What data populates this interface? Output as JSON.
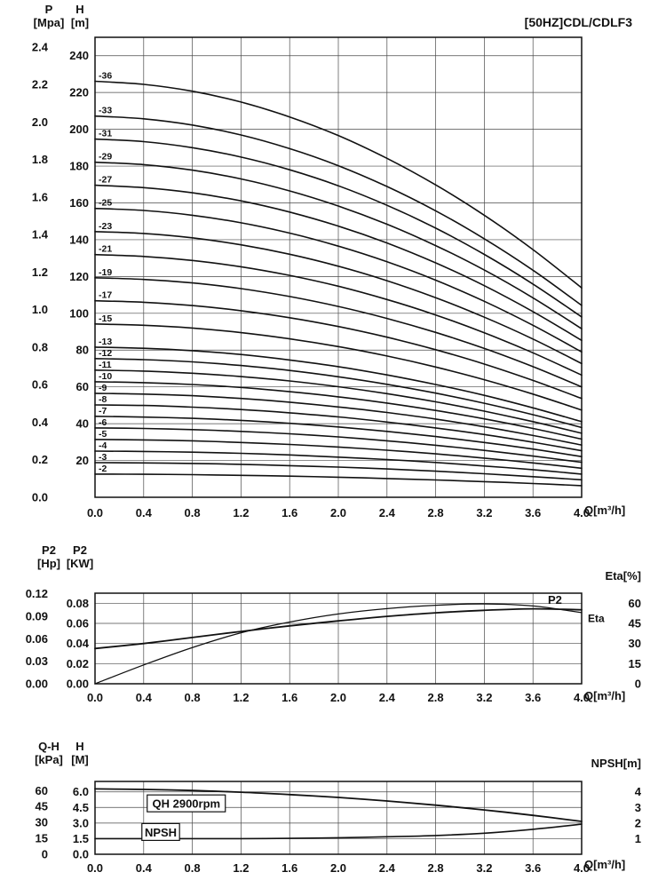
{
  "window": {
    "title": "[50HZ]CDL/CDLF3"
  },
  "colors": {
    "ink": "#111111",
    "grid": "#4a4a4a",
    "background": "#ffffff"
  },
  "x_unit_label": "Q[m³/h]",
  "chart_data": [
    {
      "id": "main",
      "type": "line",
      "title": "[50HZ]CDL/CDLF3",
      "x": {
        "min": 0,
        "max": 4,
        "values": [
          0,
          0.4,
          0.8,
          1.2,
          1.6,
          2,
          2.4,
          2.8,
          3.2,
          3.6,
          4
        ],
        "ticks": [
          "0.0",
          "0.4",
          "0.8",
          "1.2",
          "1.6",
          "2.0",
          "2.4",
          "2.8",
          "3.2",
          "3.6",
          "4.0"
        ],
        "unit": "Q[m³/h]"
      },
      "y": {
        "name": "Head H [m]",
        "min": 0,
        "max": 250,
        "grid": [
          20,
          40,
          60,
          80,
          100,
          120,
          140,
          160,
          180,
          200,
          220,
          240
        ]
      },
      "axes": [
        {
          "side": "left-outer",
          "title": [
            "P",
            "[Mpa]"
          ],
          "to_primary": 102,
          "ticks": [
            "0.0",
            "0.2",
            "0.4",
            "0.6",
            "0.8",
            "1.0",
            "1.2",
            "1.4",
            "1.6",
            "1.8",
            "2.0",
            "2.2",
            "2.4"
          ]
        },
        {
          "side": "left-inner",
          "title": [
            "H",
            "[m]"
          ],
          "to_primary": 1,
          "ticks": [
            "20",
            "40",
            "60",
            "80",
            "100",
            "120",
            "140",
            "160",
            "180",
            "200",
            "220",
            "240"
          ]
        }
      ],
      "series": [
        {
          "name": "-36",
          "label_at_start": true,
          "y": [
            226.1,
            224.4,
            220.7,
            214.8,
            206.7,
            196.6,
            184.2,
            169.8,
            153.3,
            134.6,
            113.8
          ]
        },
        {
          "name": "-33",
          "label_at_start": true,
          "y": [
            207.2,
            205.7,
            202.3,
            196.9,
            189.5,
            180.2,
            168.9,
            155.7,
            140.5,
            123.4,
            104.3
          ]
        },
        {
          "name": "-31",
          "label_at_start": true,
          "y": [
            194.7,
            193.3,
            190.0,
            184.9,
            178.0,
            169.3,
            158.7,
            146.3,
            132.0,
            115.9,
            98.0
          ]
        },
        {
          "name": "-29",
          "label_at_start": true,
          "y": [
            182.1,
            180.8,
            177.8,
            173.0,
            166.5,
            158.3,
            148.4,
            136.8,
            123.5,
            108.4,
            91.6
          ]
        },
        {
          "name": "-27",
          "label_at_start": true,
          "y": [
            169.6,
            168.3,
            165.5,
            161.1,
            155.0,
            147.4,
            138.2,
            127.4,
            115.0,
            100.9,
            85.3
          ]
        },
        {
          "name": "-25",
          "label_at_start": true,
          "y": [
            157.0,
            155.9,
            153.3,
            149.2,
            143.6,
            136.5,
            128.0,
            118.0,
            106.5,
            93.5,
            79.0
          ]
        },
        {
          "name": "-23",
          "label_at_start": true,
          "y": [
            144.4,
            143.4,
            141.0,
            137.2,
            132.1,
            125.6,
            117.7,
            108.5,
            97.9,
            86.0,
            72.7
          ]
        },
        {
          "name": "-21",
          "label_at_start": true,
          "y": [
            131.9,
            130.9,
            128.7,
            125.3,
            120.6,
            114.7,
            107.5,
            99.1,
            89.4,
            78.5,
            66.4
          ]
        },
        {
          "name": "-19",
          "label_at_start": true,
          "y": [
            119.3,
            118.4,
            116.5,
            113.4,
            109.1,
            103.7,
            97.2,
            89.6,
            80.9,
            71.0,
            60.0
          ]
        },
        {
          "name": "-17",
          "label_at_start": true,
          "y": [
            106.8,
            106.0,
            104.2,
            101.4,
            97.6,
            92.8,
            87.0,
            80.2,
            72.4,
            63.5,
            53.7
          ]
        },
        {
          "name": "-15",
          "label_at_start": true,
          "y": [
            94.2,
            93.5,
            92.0,
            89.5,
            86.1,
            81.9,
            76.8,
            70.8,
            63.9,
            56.1,
            47.4
          ]
        },
        {
          "name": "-13",
          "label_at_start": true,
          "y": [
            81.6,
            81.0,
            79.7,
            77.6,
            74.6,
            71.0,
            66.5,
            61.3,
            55.4,
            48.6,
            41.1
          ]
        },
        {
          "name": "-12",
          "label_at_start": true,
          "y": [
            75.4,
            74.8,
            73.6,
            71.6,
            68.9,
            65.5,
            61.4,
            56.6,
            51.1,
            44.9,
            37.9
          ]
        },
        {
          "name": "-11",
          "label_at_start": true,
          "y": [
            69.1,
            68.6,
            67.4,
            65.6,
            63.2,
            60.1,
            56.3,
            51.9,
            46.8,
            41.1,
            34.8
          ]
        },
        {
          "name": "-10",
          "label_at_start": true,
          "y": [
            62.8,
            62.3,
            61.3,
            59.7,
            57.4,
            54.6,
            51.2,
            47.2,
            42.6,
            37.4,
            31.6
          ]
        },
        {
          "name": "-9",
          "label_at_start": true,
          "y": [
            56.5,
            56.1,
            55.2,
            53.7,
            51.7,
            49.1,
            46.1,
            42.5,
            38.3,
            33.6,
            28.4
          ]
        },
        {
          "name": "-8",
          "label_at_start": true,
          "y": [
            50.2,
            49.9,
            49.0,
            47.7,
            45.9,
            43.7,
            40.9,
            37.7,
            34.1,
            29.9,
            25.3
          ]
        },
        {
          "name": "-7",
          "label_at_start": true,
          "y": [
            44.0,
            43.6,
            42.9,
            41.8,
            40.2,
            38.2,
            35.8,
            33.0,
            29.8,
            26.2,
            22.1
          ]
        },
        {
          "name": "-6",
          "label_at_start": true,
          "y": [
            37.7,
            37.4,
            36.8,
            35.8,
            34.5,
            32.8,
            30.7,
            28.3,
            25.5,
            22.4,
            19.0
          ]
        },
        {
          "name": "-5",
          "label_at_start": true,
          "y": [
            31.4,
            31.2,
            30.7,
            29.8,
            28.7,
            27.3,
            25.6,
            23.6,
            21.3,
            18.7,
            15.8
          ]
        },
        {
          "name": "-4",
          "label_at_start": true,
          "y": [
            25.1,
            24.9,
            24.5,
            23.9,
            23.0,
            21.8,
            20.5,
            18.9,
            17.0,
            15.0,
            12.6
          ]
        },
        {
          "name": "-3",
          "label_at_start": true,
          "y": [
            18.8,
            18.7,
            18.4,
            17.9,
            17.2,
            16.4,
            15.4,
            14.2,
            12.8,
            11.2,
            9.5
          ]
        },
        {
          "name": "-2",
          "label_at_start": true,
          "y": [
            12.6,
            12.5,
            12.3,
            11.9,
            11.5,
            10.9,
            10.2,
            9.4,
            8.5,
            7.5,
            6.3
          ]
        }
      ]
    },
    {
      "id": "power",
      "type": "line",
      "title": "P2 / Eta",
      "x": {
        "min": 0,
        "max": 4,
        "values": [
          0,
          0.4,
          0.8,
          1.2,
          1.6,
          2,
          2.4,
          2.8,
          3.2,
          3.6,
          4
        ],
        "ticks": [
          "0.0",
          "0.4",
          "0.8",
          "1.2",
          "1.6",
          "2.0",
          "2.4",
          "2.8",
          "3.2",
          "3.6",
          "4.0"
        ],
        "unit": "Q[m³/h]"
      },
      "y": {
        "name": "P2 [KW]",
        "min": 0,
        "max": 0.09,
        "grid": [
          0.02,
          0.04,
          0.06,
          0.08
        ]
      },
      "axes": [
        {
          "side": "left-outer",
          "title": [
            "P2",
            "[Hp]"
          ],
          "to_primary": 0.7457,
          "ticks": [
            "0.00",
            "0.03",
            "0.06",
            "0.09",
            "0.12"
          ]
        },
        {
          "side": "left-inner",
          "title": [
            "P2",
            "[KW]"
          ],
          "to_primary": 1,
          "ticks": [
            "0.00",
            "0.02",
            "0.04",
            "0.06",
            "0.08"
          ]
        },
        {
          "side": "right",
          "title": [
            "Eta[%]"
          ],
          "to_primary": 0.0013333,
          "ticks": [
            "0",
            "15",
            "30",
            "45",
            "60"
          ]
        }
      ],
      "series": [
        {
          "name": "P2",
          "width": 1.8,
          "y": [
            0.035,
            0.04,
            0.046,
            0.052,
            0.0575,
            0.0625,
            0.067,
            0.0705,
            0.073,
            0.0745,
            0.0735
          ]
        },
        {
          "name": "Eta",
          "width": 1.3,
          "factor": 0.0013333,
          "y": [
            0,
            14,
            27,
            38,
            46,
            52,
            56,
            58.5,
            59.5,
            58,
            53
          ]
        }
      ],
      "labels": [
        {
          "text": "P2",
          "q": 3.78,
          "v": 0.0835,
          "size": 13
        },
        {
          "text": "Eta",
          "q": 4.12,
          "v": 0.0655,
          "size": 12
        }
      ]
    },
    {
      "id": "npsh",
      "type": "line",
      "title": "QH 2900rpm / NPSH",
      "x": {
        "min": 0,
        "max": 4,
        "values": [
          0,
          0.4,
          0.8,
          1.2,
          1.6,
          2,
          2.4,
          2.8,
          3.2,
          3.6,
          4
        ],
        "ticks": [
          "0.0",
          "0.4",
          "0.8",
          "1.2",
          "1.6",
          "2.0",
          "2.4",
          "2.8",
          "3.2",
          "3.6",
          "4.0"
        ],
        "unit": "Q[m³/h]"
      },
      "y": {
        "name": "H [M]",
        "min": 0,
        "max": 7,
        "grid": [
          1.5,
          3,
          4.5,
          6
        ]
      },
      "axes": [
        {
          "side": "left-outer",
          "title": [
            "Q-H",
            "[kPa]"
          ],
          "to_primary": 0.102,
          "ticks": [
            "0",
            "15",
            "30",
            "45",
            "60"
          ]
        },
        {
          "side": "left-inner",
          "title": [
            "H",
            "[M]"
          ],
          "to_primary": 1,
          "ticks": [
            "0.0",
            "1.5",
            "3.0",
            "4.5",
            "6.0"
          ]
        },
        {
          "side": "right",
          "title": [
            "NPSH[m]"
          ],
          "to_primary": 1.5,
          "ticks": [
            "1",
            "2",
            "3",
            "4"
          ]
        }
      ],
      "series": [
        {
          "name": "QH 2900rpm",
          "width": 1.8,
          "y": [
            6.28,
            6.23,
            6.13,
            5.97,
            5.74,
            5.46,
            5.12,
            4.72,
            4.26,
            3.74,
            3.16
          ]
        },
        {
          "name": "NPSH",
          "width": 1.6,
          "factor": 1.5,
          "y": [
            1.0,
            1.0,
            1.0,
            1.0,
            1.02,
            1.06,
            1.12,
            1.2,
            1.35,
            1.6,
            1.93
          ]
        }
      ],
      "labels": [
        {
          "text": "QH 2900rpm",
          "q": 0.75,
          "v": 4.85,
          "boxed": true,
          "size": 13
        },
        {
          "text": "NPSH",
          "q": 0.54,
          "v": 2.1,
          "boxed": true,
          "size": 13
        }
      ]
    }
  ]
}
